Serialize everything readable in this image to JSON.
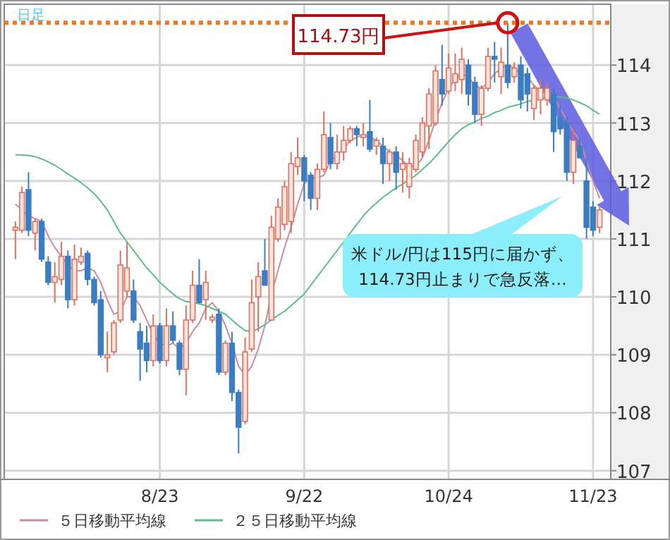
{
  "chart_data": {
    "type": "candlestick",
    "subtitle": "日足",
    "categories": [
      null,
      null,
      null,
      null,
      null,
      null,
      null,
      null,
      null,
      null,
      null,
      null,
      null,
      null,
      null,
      null,
      null,
      null,
      null,
      null,
      null,
      null,
      "8/23",
      null,
      null,
      null,
      null,
      null,
      null,
      null,
      null,
      null,
      null,
      null,
      null,
      null,
      null,
      null,
      null,
      null,
      null,
      null,
      null,
      null,
      "9/22",
      null,
      null,
      null,
      null,
      null,
      null,
      null,
      null,
      null,
      null,
      null,
      null,
      null,
      null,
      null,
      null,
      null,
      null,
      null,
      null,
      null,
      "10/24",
      null,
      null,
      null,
      null,
      null,
      null,
      null,
      null,
      null,
      null,
      null,
      null,
      null,
      null,
      null,
      null,
      null,
      null,
      null,
      null,
      null,
      "11/23",
      null
    ],
    "ohlc": [
      [
        111.15,
        111.3,
        110.65,
        111.2
      ],
      [
        111.15,
        111.9,
        111.1,
        111.8
      ],
      [
        111.85,
        112.15,
        111.05,
        111.15
      ],
      [
        111.1,
        111.35,
        110.8,
        111.3
      ],
      [
        111.3,
        111.35,
        110.6,
        110.65
      ],
      [
        110.6,
        110.7,
        110.2,
        110.25
      ],
      [
        110.25,
        110.6,
        109.9,
        110.35
      ],
      [
        110.3,
        110.95,
        110.2,
        110.7
      ],
      [
        110.7,
        110.8,
        109.8,
        109.95
      ],
      [
        109.95,
        110.9,
        109.85,
        110.65
      ],
      [
        110.6,
        110.85,
        110.55,
        110.7
      ],
      [
        110.75,
        110.8,
        110.2,
        110.3
      ],
      [
        110.3,
        110.35,
        109.85,
        109.9
      ],
      [
        109.95,
        110.1,
        108.95,
        109.0
      ],
      [
        108.95,
        109.4,
        108.7,
        109.0
      ],
      [
        109.05,
        109.6,
        109.0,
        109.55
      ],
      [
        109.6,
        110.8,
        109.55,
        110.55
      ],
      [
        110.1,
        110.95,
        110.0,
        110.5
      ],
      [
        110.1,
        110.3,
        109.55,
        109.6
      ],
      [
        109.4,
        109.55,
        108.55,
        109.1
      ],
      [
        109.2,
        109.5,
        108.7,
        108.9
      ],
      [
        108.9,
        109.7,
        108.8,
        109.5
      ],
      [
        109.5,
        109.55,
        108.85,
        108.9
      ],
      [
        108.9,
        109.8,
        108.8,
        109.5
      ],
      [
        109.5,
        109.75,
        109.2,
        109.25
      ],
      [
        109.2,
        109.25,
        108.65,
        108.75
      ],
      [
        108.75,
        109.85,
        108.3,
        109.6
      ],
      [
        109.6,
        110.45,
        109.55,
        110.2
      ],
      [
        110.2,
        110.65,
        109.9,
        109.9
      ],
      [
        109.95,
        110.45,
        109.6,
        110.25
      ],
      [
        109.6,
        109.7,
        109.55,
        109.65
      ],
      [
        109.7,
        109.8,
        108.65,
        108.7
      ],
      [
        108.7,
        109.25,
        108.65,
        109.2
      ],
      [
        109.2,
        109.4,
        108.2,
        108.35
      ],
      [
        108.35,
        108.4,
        107.3,
        107.75
      ],
      [
        107.85,
        109.3,
        107.8,
        109.05
      ],
      [
        109.1,
        110.3,
        109.05,
        109.9
      ],
      [
        110.0,
        110.6,
        109.4,
        110.35
      ],
      [
        110.45,
        111.0,
        110.2,
        110.2
      ],
      [
        109.6,
        111.4,
        109.6,
        111.2
      ],
      [
        111.0,
        111.7,
        110.95,
        111.55
      ],
      [
        111.25,
        112.0,
        111.15,
        111.9
      ],
      [
        111.3,
        112.5,
        111.1,
        112.3
      ],
      [
        112.25,
        112.75,
        112.1,
        112.4
      ],
      [
        112.4,
        112.45,
        111.65,
        112.0
      ],
      [
        112.1,
        112.15,
        111.5,
        111.7
      ],
      [
        111.7,
        112.3,
        111.5,
        112.2
      ],
      [
        112.2,
        113.2,
        112.15,
        112.8
      ],
      [
        112.75,
        113.0,
        112.2,
        112.3
      ],
      [
        112.3,
        112.8,
        112.2,
        112.5
      ],
      [
        112.5,
        112.95,
        112.35,
        112.7
      ],
      [
        112.7,
        112.95,
        112.65,
        112.9
      ],
      [
        112.9,
        112.95,
        112.6,
        112.8
      ],
      [
        112.75,
        113.0,
        112.6,
        112.8
      ],
      [
        112.85,
        113.4,
        112.5,
        112.55
      ],
      [
        112.6,
        112.75,
        112.45,
        112.7
      ],
      [
        112.6,
        112.75,
        111.95,
        112.3
      ],
      [
        112.3,
        112.55,
        112.0,
        112.5
      ],
      [
        112.5,
        112.6,
        111.85,
        112.15
      ],
      [
        112.2,
        112.5,
        111.8,
        112.3
      ],
      [
        111.9,
        112.4,
        111.7,
        112.3
      ],
      [
        112.2,
        112.8,
        112.15,
        112.7
      ],
      [
        112.5,
        113.1,
        112.4,
        113.0
      ],
      [
        112.95,
        113.6,
        112.55,
        113.5
      ],
      [
        113.0,
        114.0,
        112.95,
        113.9
      ],
      [
        113.75,
        114.35,
        113.3,
        113.5
      ],
      [
        113.55,
        114.2,
        113.5,
        113.95
      ],
      [
        113.7,
        114.2,
        113.55,
        113.85
      ],
      [
        113.75,
        114.3,
        113.5,
        114.1
      ],
      [
        114.0,
        114.1,
        113.3,
        113.5
      ],
      [
        113.7,
        113.8,
        113.0,
        113.15
      ],
      [
        113.15,
        113.65,
        112.95,
        113.6
      ],
      [
        113.6,
        114.3,
        113.55,
        114.15
      ],
      [
        114.15,
        114.4,
        113.7,
        114.1
      ],
      [
        113.8,
        114.3,
        113.5,
        114.05
      ],
      [
        114.0,
        114.73,
        113.6,
        113.7
      ],
      [
        113.8,
        114.05,
        113.7,
        113.95
      ],
      [
        114.0,
        114.15,
        113.25,
        113.4
      ],
      [
        113.85,
        113.95,
        113.2,
        113.5
      ],
      [
        113.25,
        113.65,
        113.05,
        113.6
      ],
      [
        113.4,
        113.75,
        113.15,
        113.6
      ],
      [
        113.4,
        113.7,
        113.3,
        113.6
      ],
      [
        113.5,
        113.6,
        112.5,
        112.85
      ],
      [
        113.1,
        113.3,
        112.8,
        112.9
      ],
      [
        113.0,
        113.1,
        112.0,
        112.15
      ],
      [
        112.15,
        112.9,
        111.95,
        112.7
      ],
      [
        112.6,
        112.75,
        112.4,
        112.4
      ],
      [
        112.0,
        112.4,
        111.0,
        111.2
      ],
      [
        111.55,
        111.65,
        111.05,
        111.15
      ],
      [
        111.2,
        111.55,
        111.1,
        111.5
      ]
    ],
    "series": [
      {
        "name": "５日移動平均線",
        "type": "line",
        "color": "#c98c9c",
        "values": [
          111.6,
          111.5,
          111.4,
          111.35,
          111.3,
          111.05,
          110.85,
          110.7,
          110.55,
          110.45,
          110.45,
          110.5,
          110.45,
          110.25,
          109.95,
          109.7,
          109.75,
          110.0,
          110.0,
          109.85,
          109.6,
          109.35,
          109.2,
          109.15,
          109.2,
          109.1,
          109.2,
          109.4,
          109.55,
          109.8,
          109.9,
          109.75,
          109.5,
          109.2,
          108.8,
          108.65,
          108.8,
          109.1,
          109.5,
          110.05,
          110.45,
          110.85,
          111.2,
          111.6,
          111.95,
          112.05,
          112.05,
          112.1,
          112.35,
          112.45,
          112.55,
          112.7,
          112.75,
          112.8,
          112.75,
          112.7,
          112.6,
          112.5,
          112.45,
          112.35,
          112.25,
          112.25,
          112.4,
          112.7,
          113.05,
          113.35,
          113.6,
          113.75,
          113.85,
          113.8,
          113.65,
          113.6,
          113.7,
          113.85,
          113.95,
          114.0,
          113.95,
          113.85,
          113.8,
          113.65,
          113.55,
          113.55,
          113.45,
          113.25,
          113.05,
          112.85,
          112.7,
          112.35,
          112.0,
          111.7
        ]
      },
      {
        "name": "２５日移動平均線",
        "type": "line",
        "color": "#5cbf8a",
        "values": [
          112.45,
          112.45,
          112.44,
          112.42,
          112.38,
          112.33,
          112.27,
          112.2,
          112.12,
          112.05,
          111.97,
          111.88,
          111.78,
          111.65,
          111.5,
          111.3,
          111.1,
          110.95,
          110.8,
          110.65,
          110.5,
          110.38,
          110.25,
          110.15,
          110.05,
          109.97,
          109.92,
          109.9,
          109.88,
          109.85,
          109.8,
          109.75,
          109.7,
          109.6,
          109.5,
          109.42,
          109.4,
          109.45,
          109.52,
          109.6,
          109.68,
          109.75,
          109.85,
          109.95,
          110.05,
          110.2,
          110.35,
          110.5,
          110.65,
          110.8,
          110.95,
          111.1,
          111.25,
          111.4,
          111.52,
          111.62,
          111.72,
          111.8,
          111.88,
          111.95,
          112.02,
          112.1,
          112.2,
          112.3,
          112.42,
          112.55,
          112.68,
          112.8,
          112.9,
          112.97,
          113.02,
          113.08,
          113.12,
          113.18,
          113.22,
          113.27,
          113.3,
          113.33,
          113.37,
          113.4,
          113.42,
          113.44,
          113.45,
          113.45,
          113.43,
          113.4,
          113.35,
          113.3,
          113.22,
          113.15
        ]
      }
    ],
    "ylim": [
      106.85,
      115.05
    ],
    "yticks": [
      107,
      108,
      109,
      110,
      111,
      112,
      113,
      114
    ],
    "grid": true,
    "legend": "bottom",
    "ref_lines": [
      {
        "axis": "y",
        "value": 114.73,
        "color": "#f07820",
        "line_style": "dotted"
      }
    ],
    "annotations": [
      {
        "text": "114.73円",
        "y": 114.73
      },
      "米ドル/円は115円に届かず、\n114.73円止まりで急反落…"
    ]
  }
}
